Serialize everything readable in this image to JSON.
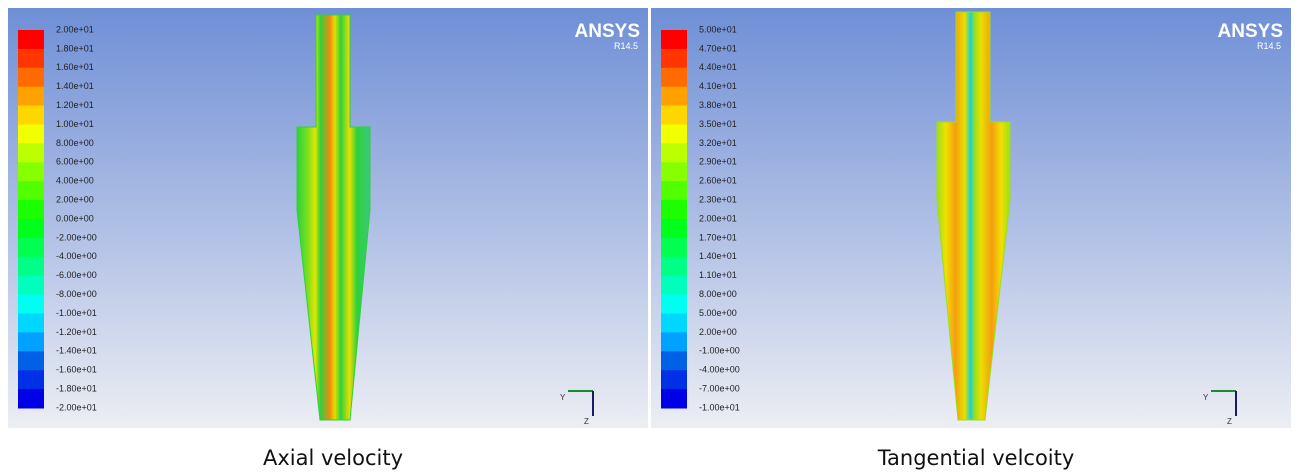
{
  "panels": [
    {
      "logo": "ANSYS",
      "version": "R14.5",
      "caption": "Axial velocity",
      "triad": [
        "Y",
        "Z"
      ],
      "legend_labels": [
        "2.00e+01",
        "1.80e+01",
        "1.60e+01",
        "1.40e+01",
        "1.20e+01",
        "1.00e+01",
        "8.00e+00",
        "6.00e+00",
        "4.00e+00",
        "2.00e+00",
        "0.00e+00",
        "-2.00e+00",
        "-4.00e+00",
        "-6.00e+00",
        "-8.00e+00",
        "-1.00e+01",
        "-1.20e+01",
        "-1.40e+01",
        "-1.60e+01",
        "-1.80e+01",
        "-2.00e+01"
      ]
    },
    {
      "logo": "ANSYS",
      "version": "R14.5",
      "caption": "Tangential velcoity",
      "triad": [
        "Y",
        "Z"
      ],
      "legend_labels": [
        "5.00e+01",
        "4.70e+01",
        "4.40e+01",
        "4.10e+01",
        "3.80e+01",
        "3.50e+01",
        "3.20e+01",
        "2.90e+01",
        "2.60e+01",
        "2.30e+01",
        "2.00e+01",
        "1.70e+01",
        "1.40e+01",
        "1.10e+01",
        "8.00e+00",
        "5.00e+00",
        "2.00e+00",
        "-1.00e+00",
        "-4.00e+00",
        "-7.00e+00",
        "-1.00e+01"
      ]
    }
  ]
}
